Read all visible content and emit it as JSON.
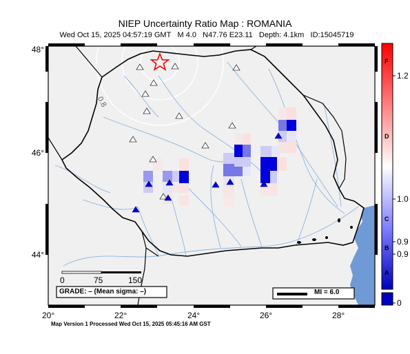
{
  "title": "NIEP Uncertainty Ratio Map : ROMANIA",
  "event_line": {
    "datetime": "Wed Oct 15, 2025 04:57:19 GMT",
    "magnitude": "M 4.0",
    "coords": "N47.76 E23.11",
    "depth": "Depth: 4.1km",
    "id": "ID:15045719"
  },
  "lon_labels": [
    "20°",
    "22°",
    "24°",
    "26°",
    "28°"
  ],
  "lat_labels": [
    "48°",
    "46°",
    "44°"
  ],
  "contour_label": "0.8",
  "scale_bar": {
    "ticks": [
      "0",
      "75",
      "150"
    ]
  },
  "grade_box": "GRADE: – (Mean sigma: –)",
  "mi_legend": "MI = 6.0",
  "colorbar": {
    "letters": [
      "F",
      "D",
      "C",
      "B",
      "A"
    ],
    "values": [
      "1.2",
      "1.0",
      "0.9",
      "0.9",
      "0"
    ]
  },
  "footer": "Map Version 1 Processed Wed Oct 15, 2025 05:45:16 AM GST",
  "colors": {
    "land": "#f0f0f0",
    "sea": "#6f9ad6",
    "rivers": "#8fb3e0",
    "high_ratio": "#ff0000",
    "low_ratio": "#0000dd"
  }
}
